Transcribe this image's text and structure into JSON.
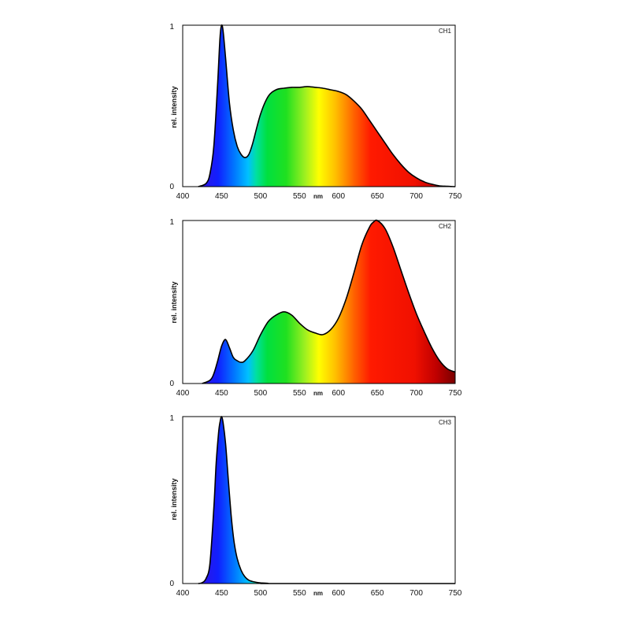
{
  "chart_data": [
    {
      "type": "area",
      "tag": "CH1",
      "ylabel": "rel. intensity",
      "xunit": "nm",
      "xlim": [
        400,
        750
      ],
      "ylim": [
        0,
        1
      ],
      "xticks": [
        "400",
        "450",
        "500",
        "550",
        "600",
        "650",
        "700",
        "750"
      ],
      "yticks": [
        "0",
        "1"
      ],
      "x": [
        420,
        430,
        435,
        440,
        445,
        448,
        450,
        452,
        455,
        460,
        465,
        470,
        475,
        480,
        485,
        490,
        500,
        510,
        520,
        530,
        540,
        550,
        560,
        570,
        580,
        590,
        600,
        610,
        620,
        630,
        640,
        650,
        660,
        670,
        680,
        690,
        700,
        710,
        720,
        730,
        740,
        750
      ],
      "y": [
        0.0,
        0.02,
        0.08,
        0.25,
        0.65,
        0.93,
        1.0,
        0.96,
        0.8,
        0.52,
        0.35,
        0.25,
        0.2,
        0.18,
        0.2,
        0.27,
        0.45,
        0.56,
        0.6,
        0.61,
        0.615,
        0.615,
        0.62,
        0.615,
        0.61,
        0.6,
        0.59,
        0.57,
        0.53,
        0.48,
        0.41,
        0.34,
        0.27,
        0.2,
        0.14,
        0.09,
        0.055,
        0.03,
        0.015,
        0.005,
        0.002,
        0.0
      ]
    },
    {
      "type": "area",
      "tag": "CH2",
      "ylabel": "rel. intensity",
      "xunit": "nm",
      "xlim": [
        400,
        750
      ],
      "ylim": [
        0,
        1
      ],
      "xticks": [
        "400",
        "450",
        "500",
        "550",
        "600",
        "650",
        "700",
        "750"
      ],
      "yticks": [
        "0",
        "1"
      ],
      "x": [
        425,
        435,
        440,
        445,
        450,
        455,
        460,
        465,
        470,
        475,
        480,
        490,
        500,
        510,
        520,
        530,
        540,
        550,
        560,
        570,
        580,
        590,
        600,
        610,
        620,
        630,
        640,
        645,
        650,
        660,
        670,
        680,
        690,
        700,
        710,
        720,
        730,
        740,
        750
      ],
      "y": [
        0.0,
        0.02,
        0.06,
        0.14,
        0.23,
        0.27,
        0.22,
        0.16,
        0.14,
        0.13,
        0.14,
        0.2,
        0.3,
        0.38,
        0.42,
        0.44,
        0.42,
        0.37,
        0.33,
        0.31,
        0.3,
        0.33,
        0.4,
        0.52,
        0.68,
        0.85,
        0.96,
        0.99,
        1.0,
        0.95,
        0.84,
        0.7,
        0.56,
        0.43,
        0.32,
        0.22,
        0.14,
        0.09,
        0.07
      ]
    },
    {
      "type": "area",
      "tag": "CH3",
      "ylabel": "rel. intensity",
      "xunit": "nm",
      "xlim": [
        400,
        750
      ],
      "ylim": [
        0,
        1
      ],
      "xticks": [
        "400",
        "450",
        "500",
        "550",
        "600",
        "650",
        "700",
        "750"
      ],
      "yticks": [
        "0",
        "1"
      ],
      "x": [
        420,
        425,
        430,
        435,
        440,
        443,
        446,
        448,
        450,
        452,
        455,
        458,
        462,
        466,
        470,
        475,
        480,
        485,
        490,
        495,
        500,
        510,
        520,
        750
      ],
      "y": [
        0.0,
        0.005,
        0.03,
        0.12,
        0.45,
        0.72,
        0.9,
        0.97,
        1.0,
        0.96,
        0.84,
        0.66,
        0.42,
        0.25,
        0.15,
        0.08,
        0.04,
        0.02,
        0.012,
        0.007,
        0.004,
        0.001,
        0.0,
        0.0
      ]
    }
  ]
}
